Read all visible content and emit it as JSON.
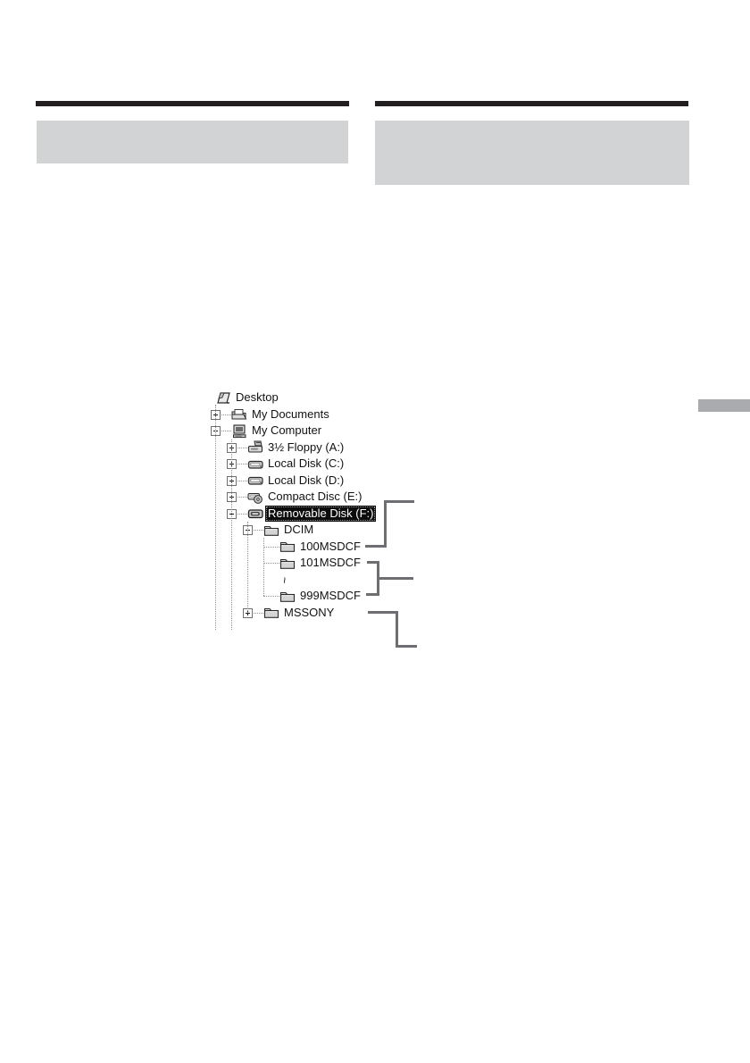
{
  "page": {
    "background": "#ffffff",
    "heading_rule_color": "#231f20",
    "heading_box_color": "#d2d3d5",
    "side_tab_color": "#a9abae",
    "callout_line_color": "#6d6e71",
    "tree_connector_color": "#8f8f8f"
  },
  "figure": {
    "tree": {
      "items": [
        {
          "label": "Desktop",
          "level": 0,
          "icon": "desktop",
          "expander": "none",
          "selected": false
        },
        {
          "label": "My Documents",
          "level": 1,
          "icon": "my-documents",
          "expander": "plus",
          "selected": false
        },
        {
          "label": "My Computer",
          "level": 1,
          "icon": "my-computer",
          "expander": "minus",
          "selected": false
        },
        {
          "label": "3½ Floppy (A:)",
          "level": 2,
          "icon": "floppy-drive",
          "expander": "plus",
          "selected": false
        },
        {
          "label": "Local Disk (C:)",
          "level": 2,
          "icon": "hard-drive",
          "expander": "plus",
          "selected": false
        },
        {
          "label": "Local Disk (D:)",
          "level": 2,
          "icon": "hard-drive",
          "expander": "plus",
          "selected": false
        },
        {
          "label": "Compact Disc (E:)",
          "level": 2,
          "icon": "cd-drive",
          "expander": "plus",
          "selected": false
        },
        {
          "label": "Removable Disk (F:)",
          "level": 2,
          "icon": "removable-drive",
          "expander": "minus",
          "selected": true
        },
        {
          "label": "DCIM",
          "level": 3,
          "icon": "folder",
          "expander": "minus",
          "selected": false
        },
        {
          "label": "100MSDCF",
          "level": 4,
          "icon": "folder",
          "expander": "none",
          "selected": false,
          "callout": "folder-100msdcf"
        },
        {
          "label": "101MSDCF",
          "level": 4,
          "icon": "folder",
          "expander": "none",
          "selected": false,
          "callout": "folder-range"
        },
        {
          "label": "~",
          "level": 4,
          "icon": "none",
          "expander": "none",
          "selected": false,
          "ellipsis": true
        },
        {
          "label": "999MSDCF",
          "level": 4,
          "icon": "folder",
          "expander": "none",
          "selected": false,
          "callout": "folder-range"
        },
        {
          "label": "MSSONY",
          "level": 3,
          "icon": "folder",
          "expander": "plus",
          "selected": false,
          "callout": "folder-mssony"
        }
      ]
    },
    "callouts": [
      {
        "id": "folder-100msdcf",
        "points_to": "100MSDCF"
      },
      {
        "id": "folder-range",
        "points_to": "101MSDCF–999MSDCF"
      },
      {
        "id": "folder-mssony",
        "points_to": "MSSONY"
      }
    ]
  }
}
